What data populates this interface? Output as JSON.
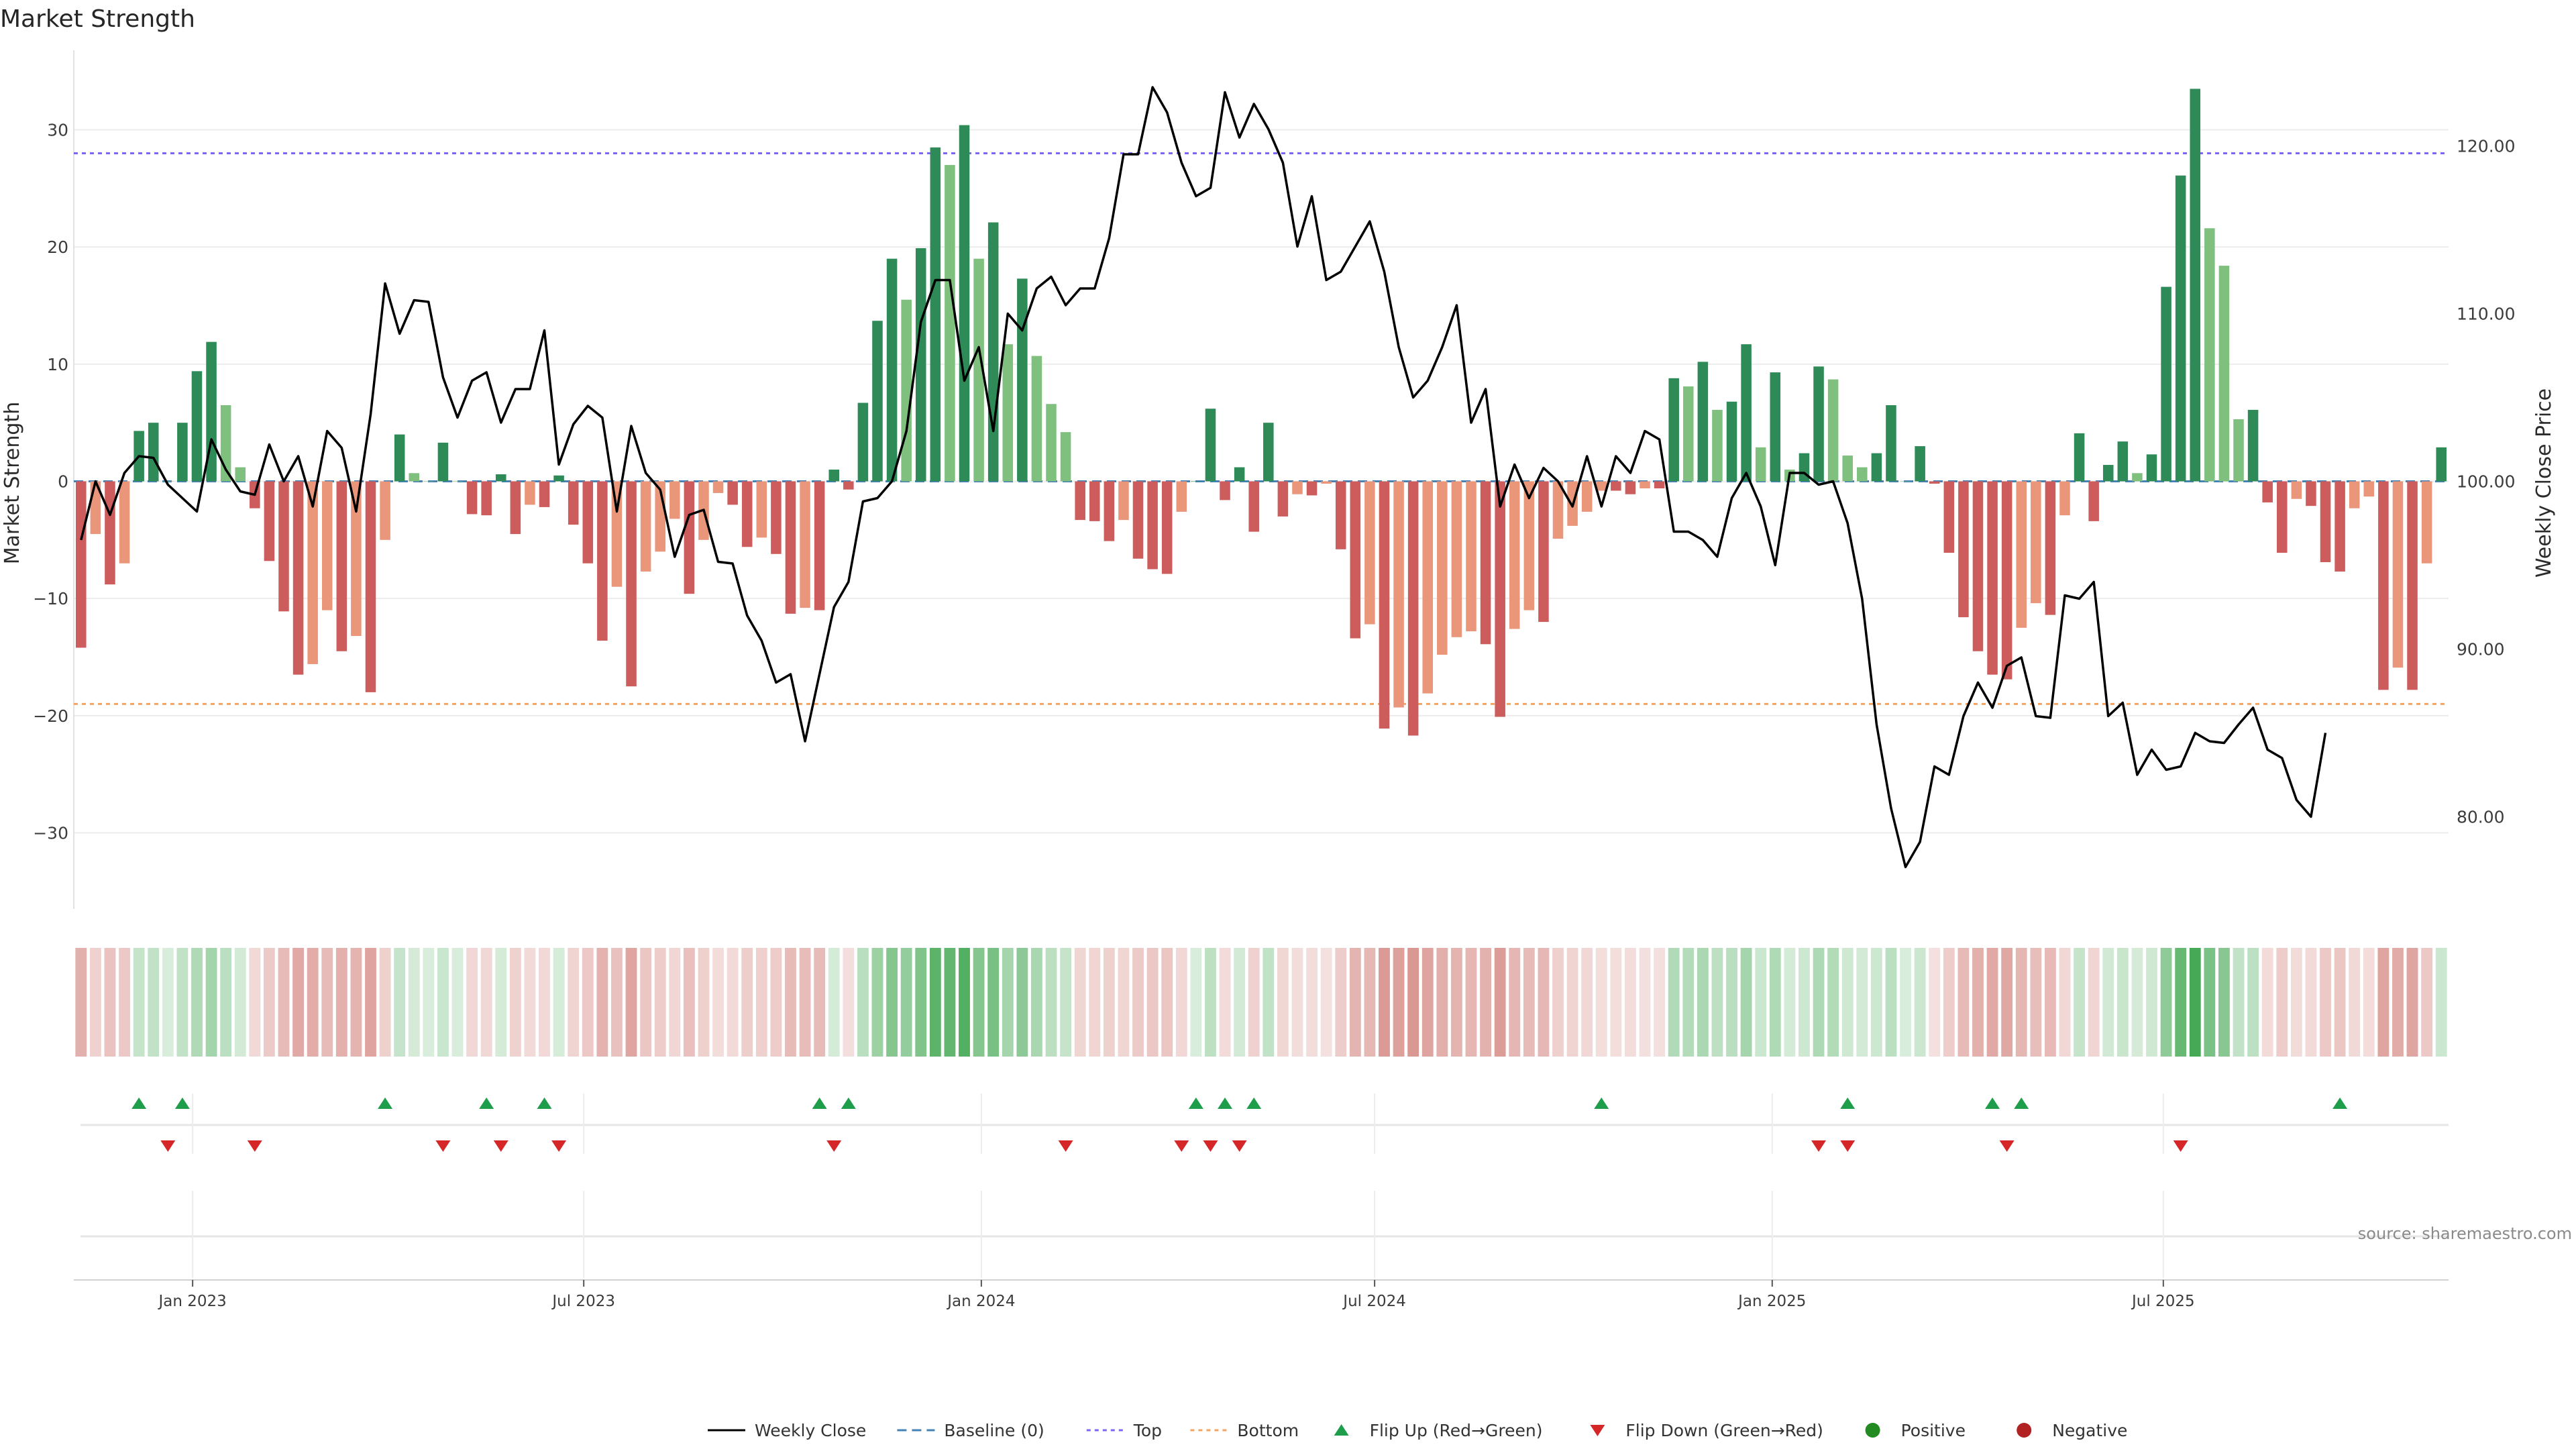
{
  "colors": {
    "green_strong": "#2e8b57",
    "green_light": "#7fc07f",
    "red_strong": "#cd5c5c",
    "red_light": "#e9967a",
    "top_line": "#7b68ee",
    "bottom_line": "#f4a460",
    "baseline": "#4682b4",
    "close_line": "#000000",
    "flip_up": "#1e9e4a",
    "flip_down": "#d62728",
    "positive": "#228b22",
    "negative": "#b22222"
  },
  "chart_data": {
    "type": "bar",
    "title": "Market Strength",
    "ylabel": "Market Strength",
    "y2label": "Weekly Close Price",
    "ylim": [
      -36.5,
      36.5
    ],
    "y2lim": [
      74.5,
      125.5
    ],
    "yticks": [
      "30",
      "20",
      "10",
      "0",
      "−10",
      "−20",
      "−30"
    ],
    "yticks_values": [
      30,
      20,
      10,
      0,
      -10,
      -20,
      -30
    ],
    "y2ticks": [
      "120.00",
      "110.00",
      "100.00",
      "90.00",
      "80.00"
    ],
    "y2ticks_values": [
      120,
      110,
      100,
      90,
      80
    ],
    "top_level": 28,
    "bottom_level": -19,
    "x_start": "2022-11-07",
    "x_end": "2025-11-10",
    "xticks": [
      "Jan 2023",
      "Jul 2023",
      "Jan 2024",
      "Jul 2024",
      "Jan 2025",
      "Jul 2025"
    ],
    "xticks_dates": [
      "2023-01-01",
      "2023-07-01",
      "2024-01-01",
      "2024-07-01",
      "2025-01-01",
      "2025-07-01"
    ],
    "series": [
      {
        "name": "Market Strength",
        "values": [
          -14.2,
          -4.5,
          -8.8,
          -7.0,
          4.3,
          5.0,
          0.0,
          5.0,
          9.4,
          11.9,
          6.5,
          1.2,
          -2.3,
          -6.8,
          -11.1,
          -16.5,
          -15.6,
          -11.0,
          -14.5,
          -13.2,
          -18.0,
          -5.0,
          4.0,
          0.7,
          0.0,
          3.3,
          0.0,
          -2.8,
          -2.9,
          0.6,
          -4.5,
          -2.0,
          -2.2,
          0.5,
          -3.7,
          -7.0,
          -13.6,
          -9.0,
          -17.5,
          -7.7,
          -6.0,
          -3.2,
          -9.6,
          -5.0,
          -1.0,
          -2.0,
          -5.6,
          -4.8,
          -6.2,
          -11.3,
          -10.8,
          -11.0,
          1.0,
          -0.7,
          6.7,
          13.7,
          19.0,
          15.5,
          19.9,
          28.5,
          27.0,
          30.4,
          19.0,
          22.1,
          11.7,
          17.3,
          10.7,
          6.6,
          4.2,
          -3.3,
          -3.4,
          -5.1,
          -3.3,
          -6.6,
          -7.5,
          -7.9,
          -2.6,
          0.0,
          6.2,
          -1.6,
          1.2,
          -4.3,
          5.0,
          -3.0,
          -1.1,
          -1.2,
          -0.2,
          -5.8,
          -13.4,
          -12.2,
          -21.1,
          -19.3,
          -21.7,
          -18.1,
          -14.8,
          -13.3,
          -12.8,
          -13.9,
          -20.1,
          -12.6,
          -11.0,
          -12.0,
          -4.9,
          -3.8,
          -2.6,
          -0.8,
          -0.8,
          -1.1,
          -0.6,
          -0.6,
          8.8,
          8.1,
          10.2,
          6.1,
          6.8,
          11.7,
          2.9,
          9.3,
          1.0,
          2.4,
          9.8,
          8.7,
          2.2,
          1.2,
          2.4,
          6.5,
          0.0,
          3.0,
          -0.2,
          -6.1,
          -11.6,
          -14.5,
          -16.5,
          -16.9,
          -12.5,
          -10.4,
          -11.4,
          -2.9,
          4.1,
          -3.4,
          1.4,
          3.4,
          0.7,
          2.3,
          16.6,
          26.1,
          33.5,
          21.6,
          18.4,
          5.3,
          6.1,
          -1.8,
          -6.1,
          -1.5,
          -2.1,
          -6.9,
          -7.7,
          -2.3,
          -1.3,
          -17.8,
          -15.9,
          -17.8,
          -7.0,
          2.9
        ]
      },
      {
        "name": "Weekly Close",
        "values": [
          96.5,
          100.0,
          98.0,
          100.5,
          101.5,
          101.4,
          99.8,
          99.0,
          98.2,
          102.5,
          100.7,
          99.4,
          99.2,
          102.2,
          100.0,
          101.5,
          98.5,
          103.0,
          102.0,
          98.2,
          104.0,
          111.8,
          108.8,
          110.8,
          110.7,
          106.2,
          103.8,
          106.0,
          106.5,
          103.5,
          105.5,
          105.5,
          109.0,
          101.0,
          103.4,
          104.5,
          103.8,
          98.2,
          103.3,
          100.5,
          99.5,
          95.5,
          98.0,
          98.3,
          95.2,
          95.1,
          92.0,
          90.5,
          88.0,
          88.5,
          84.5,
          88.5,
          92.5,
          94.0,
          98.8,
          99.0,
          100.0,
          103.0,
          109.5,
          112.0,
          112.0,
          106.0,
          108.0,
          103.0,
          110.0,
          109.0,
          111.5,
          112.2,
          110.5,
          111.5,
          111.5,
          114.5,
          119.5,
          119.5,
          123.5,
          122.0,
          119.0,
          117.0,
          117.5,
          123.2,
          120.5,
          122.5,
          121.0,
          119.0,
          114.0,
          117.0,
          112.0,
          112.5,
          114.0,
          115.5,
          112.5,
          108.0,
          105.0,
          106.0,
          108.0,
          110.5,
          103.5,
          105.5,
          98.5,
          101.0,
          99.0,
          100.8,
          100.0,
          98.5,
          101.5,
          98.5,
          101.5,
          100.5,
          103.0,
          102.5,
          97.0,
          97.0,
          96.5,
          95.5,
          99.0,
          100.5,
          98.5,
          95.0,
          100.5,
          100.5,
          99.8,
          100.0,
          97.5,
          93.0,
          85.5,
          80.5,
          77.0,
          78.5,
          83.0,
          82.5,
          86.0,
          88.0,
          86.5,
          89.0,
          89.5,
          86.0,
          85.9,
          93.2,
          93.0,
          94.0,
          86.0,
          86.8,
          82.5,
          84.0,
          82.8,
          83.0,
          85.0,
          84.5,
          84.4,
          85.5,
          86.5,
          84.0,
          83.5,
          81.0,
          80.0,
          85.0
        ]
      }
    ],
    "flip_up_indices": [
      4,
      7,
      21,
      28,
      32,
      51,
      53,
      77,
      79,
      81,
      105,
      122,
      132,
      134,
      156
    ],
    "flip_down_indices": [
      6,
      12,
      25,
      29,
      33,
      52,
      68,
      76,
      78,
      80,
      120,
      122,
      133,
      145
    ],
    "heat_strip": "color-coded cells per week (green = positive, red = negative, intensity = magnitude)"
  },
  "legend": {
    "items": [
      {
        "key": "weekly_close",
        "label": "Weekly Close"
      },
      {
        "key": "baseline",
        "label": "Baseline (0)"
      },
      {
        "key": "top",
        "label": "Top"
      },
      {
        "key": "bottom",
        "label": "Bottom"
      },
      {
        "key": "flip_up",
        "label": "Flip Up (Red→Green)"
      },
      {
        "key": "flip_down",
        "label": "Flip Down (Green→Red)"
      },
      {
        "key": "positive",
        "label": "Positive"
      },
      {
        "key": "negative",
        "label": "Negative"
      }
    ]
  },
  "source": "source: sharemaestro.com"
}
